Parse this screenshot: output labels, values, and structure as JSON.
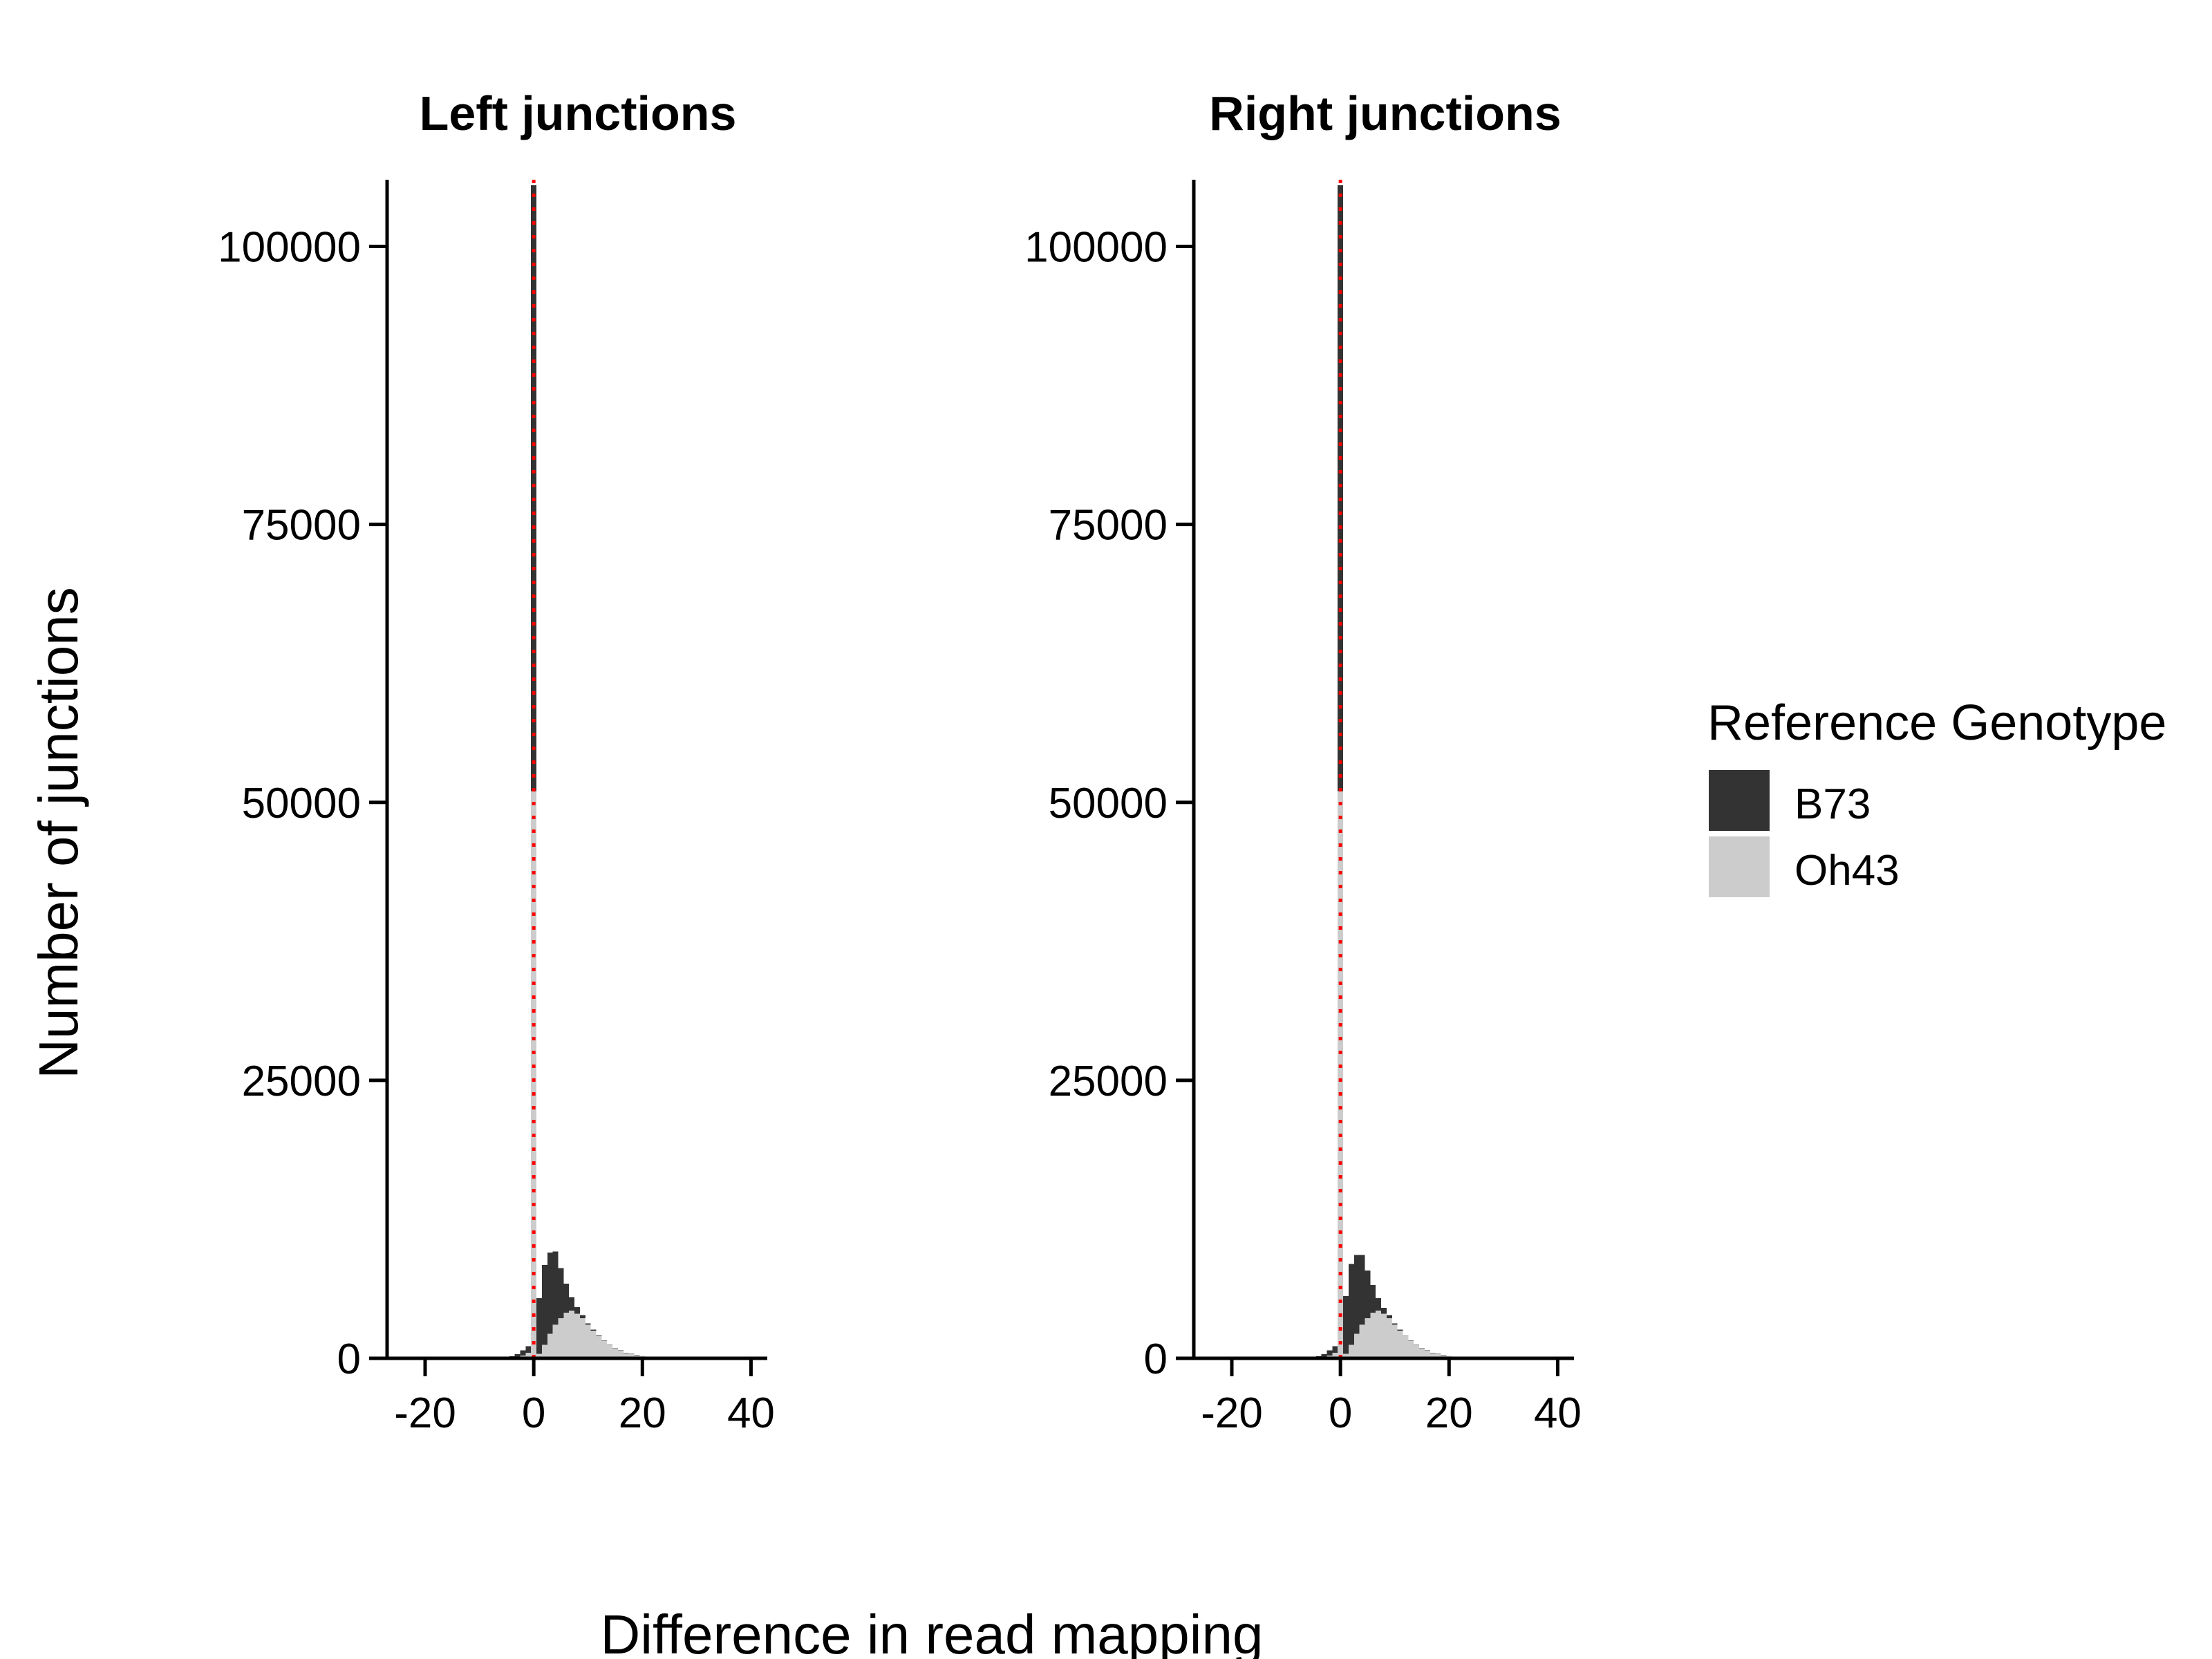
{
  "chart_data": {
    "type": "bar",
    "subtype": "stacked histogram (facetted)",
    "xlabel": "Difference in read mapping",
    "ylabel": "Number of junctions",
    "legend": {
      "title": "Reference Genotype",
      "position": "right",
      "entries": [
        {
          "name": "B73",
          "color": "#333333"
        },
        {
          "name": "Oh43",
          "color": "#cccccc"
        }
      ]
    },
    "reference_line": {
      "x": 0,
      "color": "#ff0000",
      "style": "dotted"
    },
    "grid": false,
    "xlim": [
      -27,
      43
    ],
    "ylim": [
      0,
      106000
    ],
    "xticks": [
      -20,
      0,
      20,
      40
    ],
    "xtick_labels": [
      "-20",
      "0",
      "20",
      "40"
    ],
    "yticks": [
      0,
      25000,
      50000,
      75000,
      100000
    ],
    "ytick_labels": [
      "0",
      "25000",
      "50000",
      "75000",
      "100000"
    ],
    "bin_width": 1,
    "bins": [
      -6,
      -5,
      -4,
      -3,
      -2,
      -1,
      0,
      1,
      2,
      3,
      4,
      5,
      6,
      7,
      8,
      9,
      10,
      11,
      12,
      13,
      14,
      15,
      16,
      17,
      18,
      19,
      20,
      21,
      22,
      23,
      24,
      25,
      26,
      27,
      28,
      29,
      30,
      31,
      32
    ],
    "panels": [
      {
        "title": "Left junctions",
        "series": [
          {
            "name": "Oh43",
            "values": [
              20,
              30,
              60,
              120,
              250,
              500,
              51000,
              400,
              1200,
              2200,
              3000,
              3600,
              4100,
              4300,
              4000,
              3600,
              3000,
              2500,
              2000,
              1600,
              1200,
              900,
              700,
              500,
              400,
              300,
              220,
              160,
              120,
              90,
              70,
              50,
              40,
              30,
              20,
              15,
              10,
              8,
              5
            ]
          },
          {
            "name": "B73",
            "values": [
              30,
              60,
              120,
              250,
              450,
              600,
              54500,
              5000,
              7200,
              7300,
              6600,
              4500,
              2600,
              1200,
              600,
              300,
              150,
              80,
              40,
              20,
              10,
              5,
              3,
              2,
              1,
              1,
              0,
              0,
              0,
              0,
              0,
              0,
              0,
              0,
              0,
              0,
              0,
              0,
              0
            ]
          }
        ]
      },
      {
        "title": "Right junctions",
        "series": [
          {
            "name": "Oh43",
            "values": [
              20,
              30,
              60,
              120,
              250,
              500,
              51000,
              400,
              1200,
              2200,
              3000,
              3600,
              4100,
              4300,
              4000,
              3600,
              3000,
              2500,
              2000,
              1600,
              1200,
              900,
              700,
              500,
              400,
              300,
              220,
              160,
              120,
              90,
              70,
              50,
              40,
              30,
              20,
              15,
              10,
              8,
              5
            ]
          },
          {
            "name": "B73",
            "values": [
              30,
              60,
              120,
              250,
              450,
              600,
              54500,
              5200,
              7300,
              7100,
              6300,
              4300,
              2500,
              1100,
              550,
              280,
              140,
              70,
              35,
              18,
              9,
              5,
              3,
              2,
              1,
              1,
              0,
              0,
              0,
              0,
              0,
              0,
              0,
              0,
              0,
              0,
              0,
              0,
              0
            ]
          }
        ]
      }
    ]
  }
}
